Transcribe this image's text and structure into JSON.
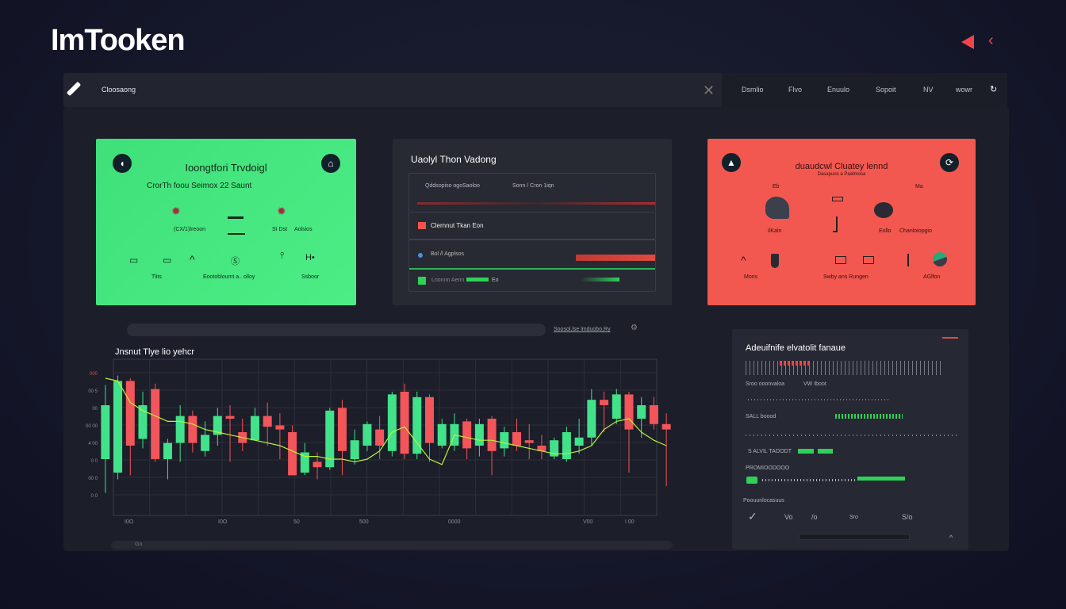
{
  "brand": {
    "logo": "ImTooken"
  },
  "header": {
    "arrow_icons": [
      "play-left-icon",
      "chevron-left-icon"
    ]
  },
  "topnav": {
    "title": "Cloosaong",
    "items": [
      "Dsmlio",
      "Flvo",
      "Enuulo",
      "Sopoit",
      "NV",
      "wowr"
    ]
  },
  "green_card": {
    "title": "Ioongtfori Trvdoigl",
    "subtitle": "CrorTh foou Seimox 22 Saunt",
    "labels": [
      "(CX/1)Ireoon",
      "SI Dst",
      "Aolsios",
      "Tlits",
      "Eootobloumt a.. olloy",
      "Ssboor"
    ],
    "bg": "#47e882"
  },
  "mid_card": {
    "title": "Uaolyl Thon Vadong",
    "rows": [
      {
        "label": "Qddsopiso ogoSaoloo",
        "extra": "Sonn / Cron 1iqn"
      },
      {
        "label": "Clernnut Tkan Eon"
      },
      {
        "label": "Bol /l Agplsos"
      },
      {
        "label": "Lnonnn Aenn",
        "extra": "Eo"
      }
    ]
  },
  "red_card": {
    "title": "duaudcwl Cluatey lennd",
    "subtitle": "Dasapuos a Paatmosa",
    "labels": [
      "Eb",
      "Ma",
      "IlKaln",
      "Eollo",
      "Chanloiopgio",
      "Mons",
      "Swby ans Rungen",
      "AGlfon"
    ],
    "bg": "#f2584f"
  },
  "chart_panel": {
    "search_hint": "Soosol,lse lmduobo,Ry",
    "bottom_label": "Go"
  },
  "chart_data": {
    "type": "candlestick",
    "title": "Jnsnut Tlye lio yehcr",
    "ytick_labels": [
      "000",
      "00 5",
      "00",
      "00 00",
      "4 00",
      "0 0",
      "00 0",
      "0 0"
    ],
    "xtick_labels": [
      "I0O",
      "I0O",
      "50",
      "500",
      "0000",
      "V00",
      "I 00"
    ],
    "ylim": [
      0,
      100
    ],
    "grid": true,
    "colors": {
      "up": "#41e28a",
      "down": "#f2555a",
      "line": "#b9f23a"
    },
    "candles": [
      [
        30,
        85,
        5,
        70
      ],
      [
        20,
        92,
        15,
        88
      ],
      [
        88,
        90,
        18,
        40
      ],
      [
        45,
        80,
        38,
        70
      ],
      [
        82,
        86,
        28,
        30
      ],
      [
        30,
        45,
        15,
        42
      ],
      [
        42,
        70,
        28,
        62
      ],
      [
        62,
        66,
        35,
        42
      ],
      [
        36,
        58,
        32,
        48
      ],
      [
        48,
        68,
        40,
        62
      ],
      [
        62,
        70,
        28,
        60
      ],
      [
        50,
        60,
        36,
        42
      ],
      [
        44,
        68,
        44,
        62
      ],
      [
        62,
        72,
        40,
        54
      ],
      [
        55,
        64,
        30,
        52
      ],
      [
        50,
        55,
        18,
        18
      ],
      [
        20,
        42,
        18,
        35
      ],
      [
        28,
        35,
        15,
        24
      ],
      [
        24,
        68,
        22,
        66
      ],
      [
        68,
        74,
        18,
        36
      ],
      [
        30,
        52,
        26,
        44
      ],
      [
        40,
        58,
        36,
        56
      ],
      [
        52,
        62,
        30,
        40
      ],
      [
        36,
        80,
        32,
        78
      ],
      [
        80,
        86,
        30,
        34
      ],
      [
        34,
        80,
        30,
        76
      ],
      [
        76,
        78,
        28,
        42
      ],
      [
        40,
        60,
        38,
        56
      ],
      [
        40,
        64,
        36,
        56
      ],
      [
        58,
        60,
        30,
        38
      ],
      [
        40,
        60,
        32,
        56
      ],
      [
        60,
        62,
        18,
        36
      ],
      [
        38,
        54,
        32,
        50
      ],
      [
        50,
        60,
        36,
        40
      ],
      [
        44,
        56,
        30,
        42
      ],
      [
        40,
        48,
        30,
        36
      ],
      [
        32,
        46,
        30,
        44
      ],
      [
        30,
        54,
        28,
        50
      ],
      [
        40,
        60,
        34,
        46
      ],
      [
        46,
        82,
        40,
        74
      ],
      [
        74,
        80,
        50,
        70
      ],
      [
        60,
        82,
        56,
        78
      ],
      [
        78,
        80,
        20,
        52
      ],
      [
        60,
        76,
        46,
        70
      ],
      [
        70,
        76,
        52,
        56
      ],
      [
        56,
        64,
        10,
        52
      ]
    ],
    "line": [
      90,
      88,
      72,
      66,
      62,
      58,
      58,
      56,
      52,
      50,
      48,
      46,
      44,
      42,
      40,
      36,
      32,
      32,
      30,
      30,
      28,
      30,
      36,
      50,
      54,
      42,
      30,
      26,
      48,
      46,
      44,
      44,
      42,
      40,
      38,
      36,
      34,
      34,
      36,
      40,
      52,
      58,
      60,
      50,
      44,
      40
    ]
  },
  "right_panel": {
    "title": "Adeuifnife elvatolit fanaue",
    "rows": [
      "Sroo ooonvaloa",
      "VW Iboot",
      "SALL boood",
      "S ALVIL TAOODT",
      "PROMIOODOOO"
    ],
    "footer_title": "Poouunlocasuus",
    "footer_items": [
      "✓",
      "Vo",
      "/o",
      "Sro",
      "S/o"
    ]
  }
}
